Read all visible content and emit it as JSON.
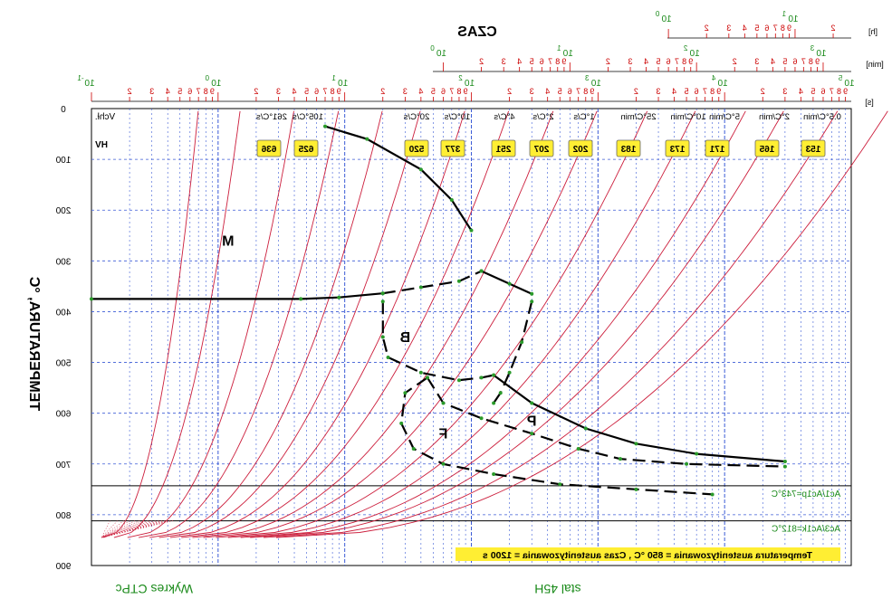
{
  "chart_data": {
    "type": "line",
    "mirrored_horizontally": true,
    "title": "CZAS",
    "footer_left": "Wykres CTPc",
    "footer_center": "stal 45H",
    "y_axis": {
      "label": "TEMPERATURA, °C",
      "min": 0,
      "max": 900,
      "inverted": true,
      "ticks": [
        "0",
        "100",
        "200",
        "300",
        "400",
        "500",
        "600",
        "700",
        "800",
        "900"
      ]
    },
    "x_axis_seconds": {
      "unit": "[s]",
      "scale": "log",
      "min": 0.1,
      "max": 100000,
      "decade_labels": [
        "10",
        "10",
        "10",
        "10",
        "10",
        "10",
        "10"
      ],
      "decade_exponents": [
        "-1",
        "0",
        "1",
        "2",
        "3",
        "4",
        "5"
      ],
      "minor_labels": [
        "2",
        "3",
        "4",
        "5",
        "6",
        "7",
        "8",
        "9"
      ]
    },
    "x_axis_minutes": {
      "unit": "[min]",
      "scale": "log",
      "decade_labels": [
        "10",
        "10",
        "10",
        "10"
      ],
      "decade_exponents": [
        "0",
        "1",
        "2",
        "3"
      ],
      "minor_labels": [
        "2",
        "3",
        "4",
        "5",
        "6",
        "7",
        "8",
        "9"
      ]
    },
    "x_axis_hours": {
      "unit": "[h]",
      "scale": "log",
      "decade_labels": [
        "10",
        "10"
      ],
      "decade_exponents": [
        "0",
        "1"
      ],
      "minor_labels": [
        "2",
        "3",
        "4",
        "5",
        "6",
        "7",
        "8",
        "9"
      ]
    },
    "cooling_rate_header": "Vchł.",
    "cooling_rates": [
      "261°C/s",
      "105°C/s",
      "20°C/s",
      "10°C/s",
      "4°C/s",
      "2°C/s",
      "1°C/s",
      "25°C/min",
      "10°C/min",
      "5°C/min",
      "2°C/min",
      "0.5°C/min"
    ],
    "hardness_label": "HV",
    "hardness": [
      {
        "value": "636",
        "t_s": 5.0
      },
      {
        "value": "625",
        "t_s": 10.0
      },
      {
        "value": "520",
        "t_s": 45.0
      },
      {
        "value": "377",
        "t_s": 90.0
      },
      {
        "value": "251",
        "t_s": 300.0
      },
      {
        "value": "207",
        "t_s": 700.0
      },
      {
        "value": "202",
        "t_s": 1400.0
      },
      {
        "value": "183",
        "t_s": 5000.0
      },
      {
        "value": "173",
        "t_s": 18000.0
      },
      {
        "value": "171",
        "t_s": 32000.0
      },
      {
        "value": "165",
        "t_s": 110000.0
      },
      {
        "value": "153",
        "t_s": 300000.0
      }
    ],
    "region_labels": [
      {
        "text": "M",
        "t_s": 1.2,
        "temp": 270
      },
      {
        "text": "B",
        "t_s": 30.0,
        "temp": 460
      },
      {
        "text": "F",
        "t_s": 60.0,
        "temp": 650
      },
      {
        "text": "P",
        "t_s": 300.0,
        "temp": 625
      }
    ],
    "reference_lines": [
      {
        "label": "Ac1/Ac1p=743°C",
        "temp": 743
      },
      {
        "label": "Ac3/Ac1k=812°C",
        "temp": 812
      }
    ],
    "note": "Temperatura austenityzowania = 850 °C , Czas austenityzowania = 1200 s",
    "curves": [
      {
        "name": "Ms",
        "style": "solid",
        "points": [
          [
            0.1,
            375
          ],
          [
            4.5,
            375
          ],
          [
            9,
            372
          ],
          [
            20,
            364
          ]
        ]
      },
      {
        "name": "Ms-dashed",
        "style": "dashed",
        "points": [
          [
            20,
            364
          ],
          [
            40,
            352
          ],
          [
            80,
            340
          ],
          [
            120,
            320
          ]
        ]
      },
      {
        "name": "Ms-right",
        "style": "solid",
        "points": [
          [
            120,
            320
          ],
          [
            200,
            345
          ],
          [
            300,
            365
          ]
        ]
      },
      {
        "name": "M-upper",
        "style": "solid",
        "points": [
          [
            7,
            35
          ],
          [
            15,
            60
          ],
          [
            40,
            120
          ],
          [
            70,
            180
          ],
          [
            100,
            240
          ]
        ]
      },
      {
        "name": "B-left",
        "style": "dashed",
        "points": [
          [
            20,
            380
          ],
          [
            20,
            450
          ],
          [
            22,
            490
          ],
          [
            40,
            520
          ],
          [
            80,
            535
          ],
          [
            120,
            530
          ],
          [
            150,
            525
          ]
        ]
      },
      {
        "name": "B-right",
        "style": "dashed",
        "points": [
          [
            300,
            380
          ],
          [
            250,
            460
          ],
          [
            200,
            520
          ],
          [
            170,
            560
          ],
          [
            150,
            580
          ]
        ]
      },
      {
        "name": "F-start",
        "style": "dashed",
        "points": [
          [
            45,
            530
          ],
          [
            30,
            560
          ],
          [
            28,
            620
          ],
          [
            35,
            670
          ],
          [
            60,
            700
          ],
          [
            150,
            720
          ],
          [
            500,
            740
          ],
          [
            2000,
            750
          ],
          [
            8000,
            760
          ]
        ]
      },
      {
        "name": "F-upper",
        "style": "dashed",
        "points": [
          [
            45,
            530
          ],
          [
            60,
            580
          ],
          [
            120,
            610
          ],
          [
            300,
            640
          ],
          [
            700,
            670
          ],
          [
            1500,
            690
          ],
          [
            5000,
            700
          ],
          [
            30000,
            705
          ]
        ]
      },
      {
        "name": "P-finish",
        "style": "solid",
        "points": [
          [
            150,
            525
          ],
          [
            300,
            580
          ],
          [
            800,
            630
          ],
          [
            2000,
            660
          ],
          [
            6000,
            680
          ],
          [
            30000,
            695
          ]
        ]
      }
    ],
    "cooling_curves_t_s": [
      0.7,
      1.5,
      4.0,
      9.0,
      20.0,
      40.0,
      90.0,
      200.0,
      450.0,
      1000.0,
      2500.0,
      6000.0,
      15000.0,
      30000.0,
      80000.0,
      200000.0
    ]
  }
}
